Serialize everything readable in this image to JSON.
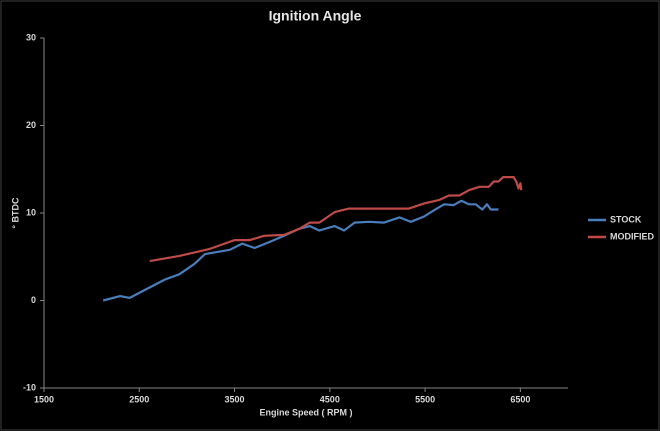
{
  "chart_data": {
    "type": "line",
    "title": "Ignition Angle",
    "x_label": "Engine Speed ( RPM )",
    "y_label": "° BTDC",
    "xlim": [
      1500,
      7000
    ],
    "xticks": [
      1500,
      2500,
      3500,
      4500,
      5500,
      6500
    ],
    "ylim": [
      -10,
      30
    ],
    "yticks": [
      -10,
      0,
      10,
      20,
      30
    ],
    "legend": "right",
    "series": [
      {
        "name": "STOCK",
        "color": "#4a7ebb",
        "x": [
          2120,
          2300,
          2400,
          2610,
          2770,
          2920,
          3080,
          3190,
          3290,
          3450,
          3580,
          3710,
          3870,
          4020,
          4180,
          4290,
          4390,
          4550,
          4650,
          4760,
          4910,
          5070,
          5230,
          5350,
          5490,
          5590,
          5700,
          5800,
          5880,
          5960,
          6030,
          6100,
          6150,
          6190,
          6270
        ],
        "values": [
          0,
          0.5,
          0.3,
          1.5,
          2.4,
          3,
          4.2,
          5.3,
          5.5,
          5.8,
          6.5,
          6.0,
          6.7,
          7.4,
          8.2,
          8.5,
          8.0,
          8.5,
          8.0,
          8.9,
          9.0,
          8.9,
          9.5,
          9.0,
          9.6,
          10.3,
          11.0,
          10.9,
          11.4,
          11.0,
          11.0,
          10.4,
          11.0,
          10.4,
          10.4
        ]
      },
      {
        "name": "MODIFIED",
        "color": "#be4b48",
        "x": [
          2610,
          2920,
          3240,
          3500,
          3660,
          3810,
          4020,
          4180,
          4290,
          4390,
          4550,
          4700,
          4910,
          5330,
          5490,
          5650,
          5750,
          5860,
          5960,
          6070,
          6170,
          6220,
          6270,
          6320,
          6430,
          6460,
          6480,
          6500,
          6510
        ],
        "values": [
          4.5,
          5.1,
          5.9,
          6.9,
          6.9,
          7.4,
          7.5,
          8.2,
          8.9,
          8.9,
          10.1,
          10.5,
          10.5,
          10.5,
          11.1,
          11.5,
          12.0,
          12.0,
          12.6,
          13.0,
          13.0,
          13.6,
          13.6,
          14.1,
          14.1,
          13.5,
          12.8,
          13.4,
          12.6
        ]
      }
    ]
  }
}
